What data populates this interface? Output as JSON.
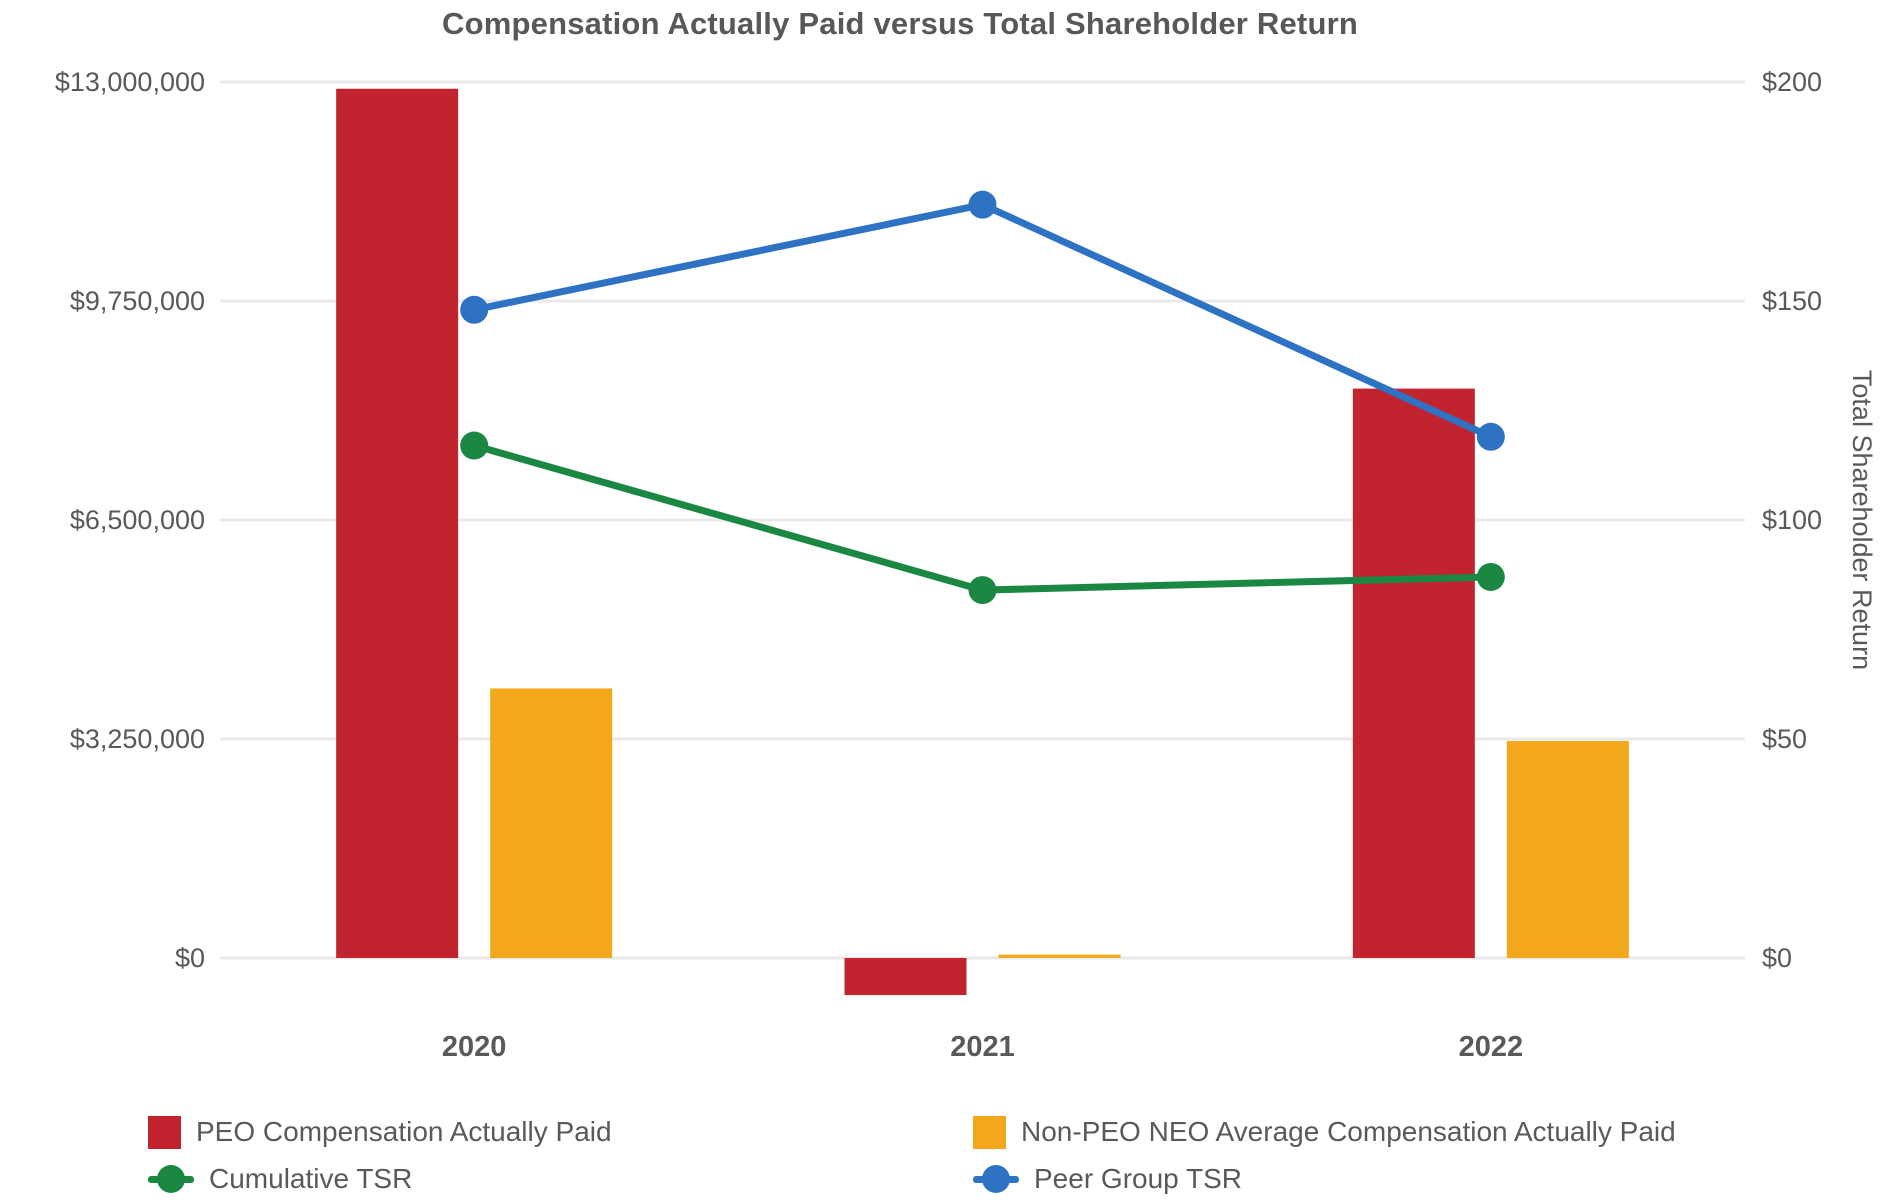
{
  "title": "Compensation Actually Paid versus Total Shareholder Return",
  "colors": {
    "red": "#C2242F",
    "yellow": "#F3A71B",
    "green": "#1A8743",
    "blue": "#2E72C4",
    "grid": "#E9E9E9",
    "text": "#58595B",
    "title": "#57585A"
  },
  "chart_data": {
    "type": "bar",
    "overlay_type": "line",
    "title": "Compensation Actually Paid versus Total Shareholder Return",
    "categories": [
      "2020",
      "2021",
      "2022"
    ],
    "bar_series": [
      {
        "name": "PEO Compensation Actually Paid",
        "color_key": "red",
        "axis": "left",
        "values": [
          12900000,
          -550000,
          8450000
        ]
      },
      {
        "name": "Non-PEO NEO Average Compensation Actually Paid",
        "color_key": "yellow",
        "axis": "left",
        "values": [
          4000000,
          50000,
          3220000
        ]
      }
    ],
    "line_series": [
      {
        "name": "Cumulative TSR",
        "color_key": "green",
        "axis": "right",
        "values": [
          117,
          84,
          87
        ]
      },
      {
        "name": "Peer Group TSR",
        "color_key": "blue",
        "axis": "right",
        "values": [
          148,
          172,
          119
        ]
      }
    ],
    "left_axis": {
      "max": 13000000,
      "ticks": [
        {
          "label": "$13,000,000",
          "value": 13000000
        },
        {
          "label": "$9,750,000",
          "value": 9750000
        },
        {
          "label": "$6,500,000",
          "value": 6500000
        },
        {
          "label": "$3,250,000",
          "value": 3250000
        },
        {
          "label": "$0",
          "value": 0
        }
      ]
    },
    "right_axis": {
      "title": "Total Shareholder Return",
      "max": 200,
      "ticks": [
        {
          "label": "$200",
          "value": 200
        },
        {
          "label": "$150",
          "value": 150
        },
        {
          "label": "$100",
          "value": 100
        },
        {
          "label": "$50",
          "value": 50
        },
        {
          "label": "$0",
          "value": 0
        }
      ]
    },
    "grid": true,
    "legend_position": "bottom"
  }
}
